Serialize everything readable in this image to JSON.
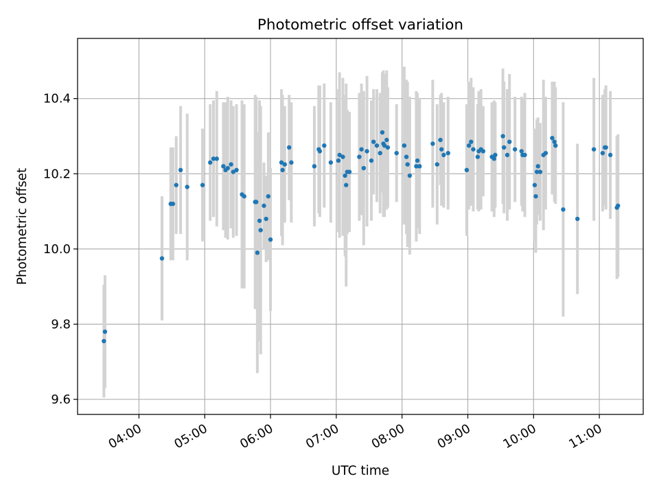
{
  "chart_data": {
    "type": "scatter",
    "title": "Photometric offset variation",
    "xlabel": "UTC time",
    "ylabel": "Photometric offset",
    "x_unit": "UTC time (HH:MM)",
    "xlim": [
      "03:04",
      "11:40"
    ],
    "ylim": [
      9.56,
      10.56
    ],
    "xticks": [
      "04:00",
      "05:00",
      "06:00",
      "07:00",
      "08:00",
      "09:00",
      "10:00",
      "11:00"
    ],
    "yticks": [
      9.6,
      9.8,
      10.0,
      10.2,
      10.4
    ],
    "ytick_labels": [
      "9.6",
      "9.8",
      "10.0",
      "10.2",
      "10.4"
    ],
    "grid": true,
    "colors": {
      "point": "#1f77b4",
      "errorbar": "#d3d3d3",
      "grid": "#b0b0b0"
    },
    "series": [
      {
        "x": [
          "03:28",
          "03:29",
          "04:21",
          "04:29",
          "04:31",
          "04:34",
          "04:38",
          "04:44",
          "04:58",
          "05:05",
          "05:08",
          "05:11",
          "05:17",
          "05:19",
          "05:21",
          "05:24",
          "05:26",
          "05:29",
          "05:34",
          "05:36",
          "05:46",
          "05:47",
          "05:48",
          "05:50",
          "05:51",
          "05:54",
          "05:56",
          "05:58",
          "06:00",
          "06:10",
          "06:11",
          "06:13",
          "06:17",
          "06:19",
          "06:40",
          "06:44",
          "06:45",
          "06:49",
          "06:55",
          "07:02",
          "07:03",
          "07:06",
          "07:08",
          "07:09",
          "07:10",
          "07:12",
          "07:21",
          "07:23",
          "07:25",
          "07:28",
          "07:32",
          "07:34",
          "07:37",
          "07:40",
          "07:42",
          "07:43",
          "07:44",
          "07:46",
          "07:47",
          "07:55",
          "08:02",
          "08:04",
          "08:05",
          "08:07",
          "08:13",
          "08:14",
          "08:16",
          "08:28",
          "08:32",
          "08:35",
          "08:36",
          "08:38",
          "08:42",
          "08:59",
          "09:01",
          "09:03",
          "09:05",
          "09:09",
          "09:10",
          "09:12",
          "09:14",
          "09:22",
          "09:24",
          "09:25",
          "09:32",
          "09:33",
          "09:36",
          "09:38",
          "09:43",
          "09:49",
          "09:50",
          "09:52",
          "10:01",
          "10:02",
          "10:03",
          "10:04",
          "10:06",
          "10:09",
          "10:11",
          "10:17",
          "10:19",
          "10:20",
          "10:27",
          "10:40",
          "10:55",
          "11:03",
          "11:05",
          "11:06",
          "11:10",
          "11:16",
          "11:17"
        ],
        "y": [
          9.755,
          9.78,
          9.975,
          10.12,
          10.12,
          10.17,
          10.21,
          10.165,
          10.17,
          10.23,
          10.24,
          10.24,
          10.22,
          10.21,
          10.215,
          10.225,
          10.205,
          10.21,
          10.145,
          10.14,
          10.125,
          10.125,
          9.99,
          10.075,
          10.05,
          10.115,
          10.08,
          10.14,
          10.025,
          10.23,
          10.21,
          10.225,
          10.27,
          10.23,
          10.22,
          10.265,
          10.26,
          10.275,
          10.23,
          10.235,
          10.25,
          10.245,
          10.195,
          10.17,
          10.205,
          10.205,
          10.245,
          10.265,
          10.215,
          10.26,
          10.235,
          10.285,
          10.275,
          10.255,
          10.31,
          10.28,
          10.275,
          10.29,
          10.27,
          10.255,
          10.275,
          10.245,
          10.225,
          10.195,
          10.22,
          10.235,
          10.22,
          10.28,
          10.225,
          10.29,
          10.265,
          10.25,
          10.255,
          10.21,
          10.275,
          10.285,
          10.265,
          10.245,
          10.26,
          10.265,
          10.26,
          10.245,
          10.24,
          10.25,
          10.3,
          10.27,
          10.25,
          10.285,
          10.265,
          10.26,
          10.25,
          10.25,
          10.17,
          10.14,
          10.205,
          10.22,
          10.205,
          10.25,
          10.255,
          10.295,
          10.285,
          10.275,
          10.105,
          10.08,
          10.265,
          10.255,
          10.27,
          10.27,
          10.25,
          10.11,
          10.115
        ],
        "yerr": [
          0.15,
          0.15,
          0.165,
          0.15,
          0.15,
          0.13,
          0.17,
          0.195,
          0.15,
          0.155,
          0.155,
          0.18,
          0.17,
          0.18,
          0.19,
          0.17,
          0.175,
          0.175,
          0.25,
          0.245,
          0.285,
          0.28,
          0.32,
          0.32,
          0.33,
          0.115,
          0.115,
          0.17,
          0.19,
          0.195,
          0.2,
          0.155,
          0.14,
          0.16,
          0.16,
          0.17,
          0.175,
          0.165,
          0.16,
          0.19,
          0.22,
          0.21,
          0.215,
          0.27,
          0.165,
          0.16,
          0.17,
          0.175,
          0.205,
          0.2,
          0.16,
          0.14,
          0.15,
          0.16,
          0.16,
          0.195,
          0.19,
          0.185,
          0.16,
          0.13,
          0.21,
          0.205,
          0.22,
          0.21,
          0.2,
          0.18,
          0.18,
          0.17,
          0.16,
          0.12,
          0.15,
          0.14,
          0.15,
          0.175,
          0.17,
          0.17,
          0.165,
          0.14,
          0.16,
          0.16,
          0.12,
          0.145,
          0.155,
          0.14,
          0.18,
          0.175,
          0.175,
          0.18,
          0.14,
          0.145,
          0.15,
          0.165,
          0.15,
          0.15,
          0.14,
          0.13,
          0.13,
          0.2,
          0.15,
          0.15,
          0.16,
          0.155,
          0.285,
          0.2,
          0.19,
          0.155,
          0.155,
          0.165,
          0.17,
          0.19,
          0.19
        ]
      }
    ]
  }
}
